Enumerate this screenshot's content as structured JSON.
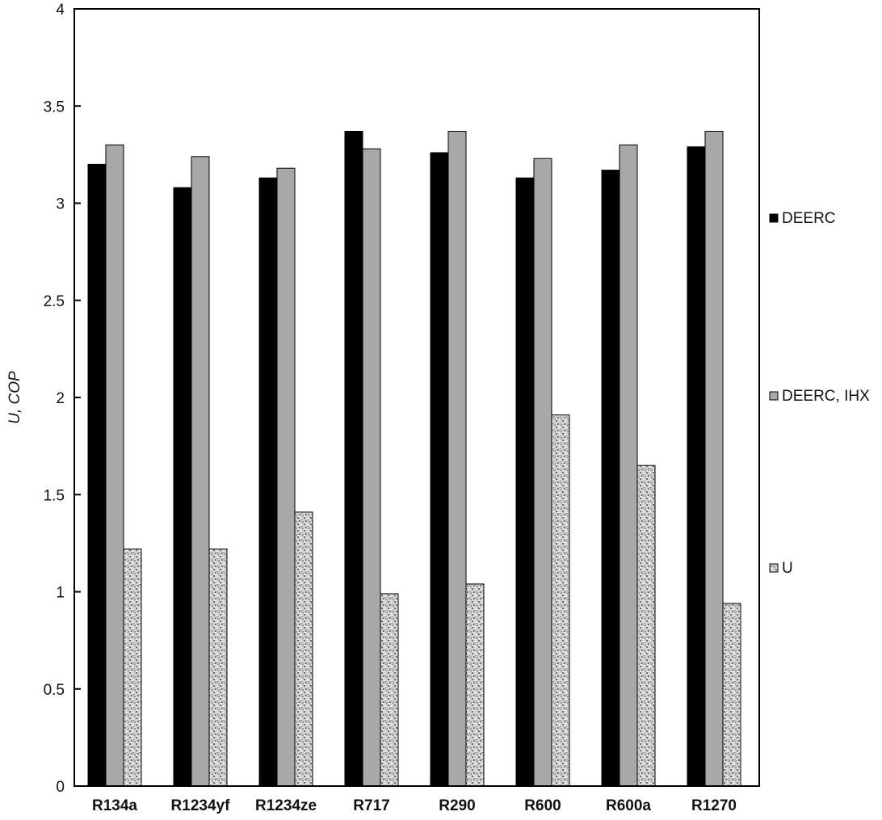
{
  "chart_data": {
    "type": "bar",
    "title": "",
    "xlabel": "",
    "ylabel": "U, COP",
    "ylim": [
      0,
      4
    ],
    "yticks": [
      "0",
      "0.5",
      "1",
      "1.5",
      "2",
      "2.5",
      "3",
      "3.5",
      "4"
    ],
    "grid": false,
    "legend_position": "right",
    "categories": [
      "R134a",
      "R1234yf",
      "R1234ze",
      "R717",
      "R290",
      "R600",
      "R600a",
      "R1270"
    ],
    "series": [
      {
        "name": "DEERC",
        "color": "#000000",
        "pattern": "solid",
        "values": [
          3.2,
          3.08,
          3.13,
          3.37,
          3.26,
          3.13,
          3.17,
          3.29
        ]
      },
      {
        "name": "DEERC, IHX",
        "color": "#a8a8a8",
        "pattern": "solid",
        "values": [
          3.3,
          3.24,
          3.18,
          3.28,
          3.37,
          3.23,
          3.3,
          3.37
        ]
      },
      {
        "name": "U",
        "color": "#c8c8c8",
        "pattern": "speckled",
        "values": [
          1.22,
          1.22,
          1.41,
          0.99,
          1.04,
          1.91,
          1.65,
          0.94
        ]
      }
    ]
  }
}
